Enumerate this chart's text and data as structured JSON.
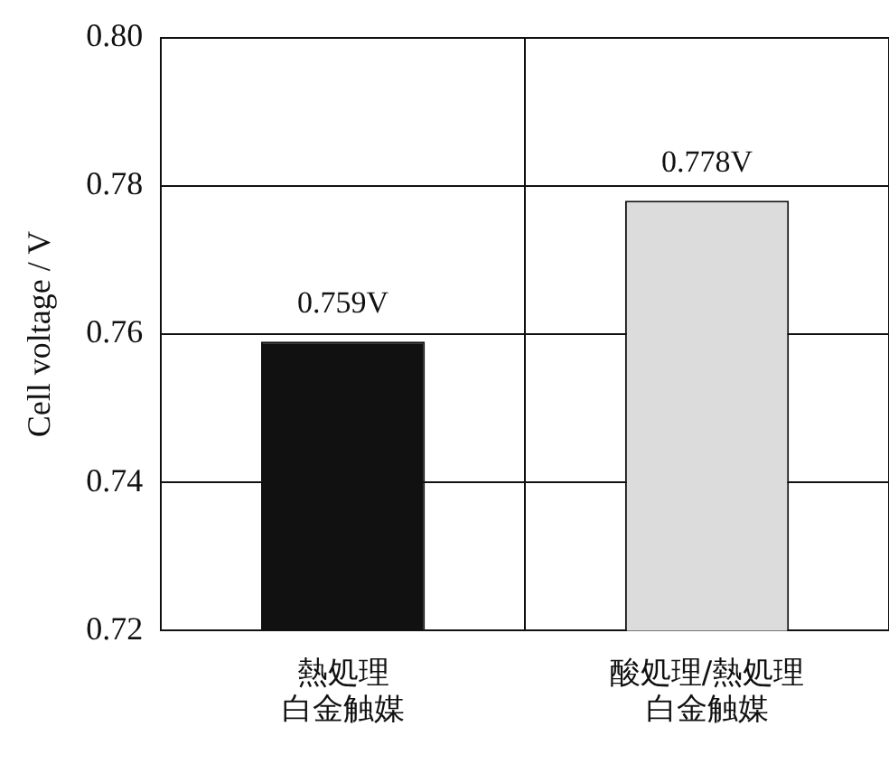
{
  "chart_data": {
    "type": "bar",
    "ylabel": "Cell voltage / V",
    "categories": [
      "熱処理白金触媒",
      "酸処理/熱処理白金触媒"
    ],
    "values": [
      0.759,
      0.778
    ],
    "colors": [
      "#111111",
      "#dcdcdc"
    ],
    "value_labels": [
      "0.759V",
      "0.778V"
    ],
    "ylim": [
      0.72,
      0.8
    ],
    "yticks": [
      {
        "value": 0.72,
        "label": "0.72"
      },
      {
        "value": 0.74,
        "label": "0.74"
      },
      {
        "value": 0.76,
        "label": "0.76"
      },
      {
        "value": 0.78,
        "label": "0.78"
      },
      {
        "value": 0.8,
        "label": "0.80"
      }
    ],
    "grid": true
  }
}
